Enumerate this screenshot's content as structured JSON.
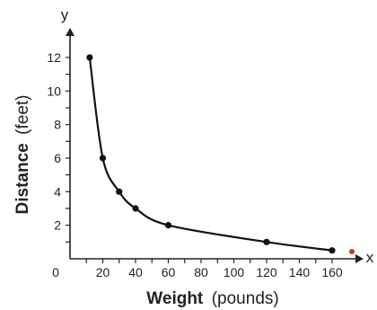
{
  "chart_data": {
    "type": "line",
    "xlabel": "Weight (pounds)",
    "xlabel_bold": "Weight",
    "xlabel_unit": "(pounds)",
    "ylabel": "Distance (feet)",
    "ylabel_bold": "Distance",
    "ylabel_unit": "(feet)",
    "x_axis_letter": "x",
    "y_axis_letter": "y",
    "origin_label": "0",
    "xlim": [
      0,
      170
    ],
    "ylim": [
      0,
      12.8
    ],
    "x_ticks": [
      "20",
      "40",
      "60",
      "80",
      "100",
      "120",
      "140",
      "160"
    ],
    "y_ticks": [
      "2",
      "4",
      "6",
      "8",
      "10",
      "12"
    ],
    "grid": false,
    "series": [
      {
        "x": [
          12,
          20,
          30,
          40,
          60,
          120,
          160
        ],
        "y": [
          12,
          6,
          4,
          3,
          2,
          1,
          0.5
        ],
        "color": "#111111"
      }
    ],
    "stray_mark_color": "#c0392b"
  }
}
